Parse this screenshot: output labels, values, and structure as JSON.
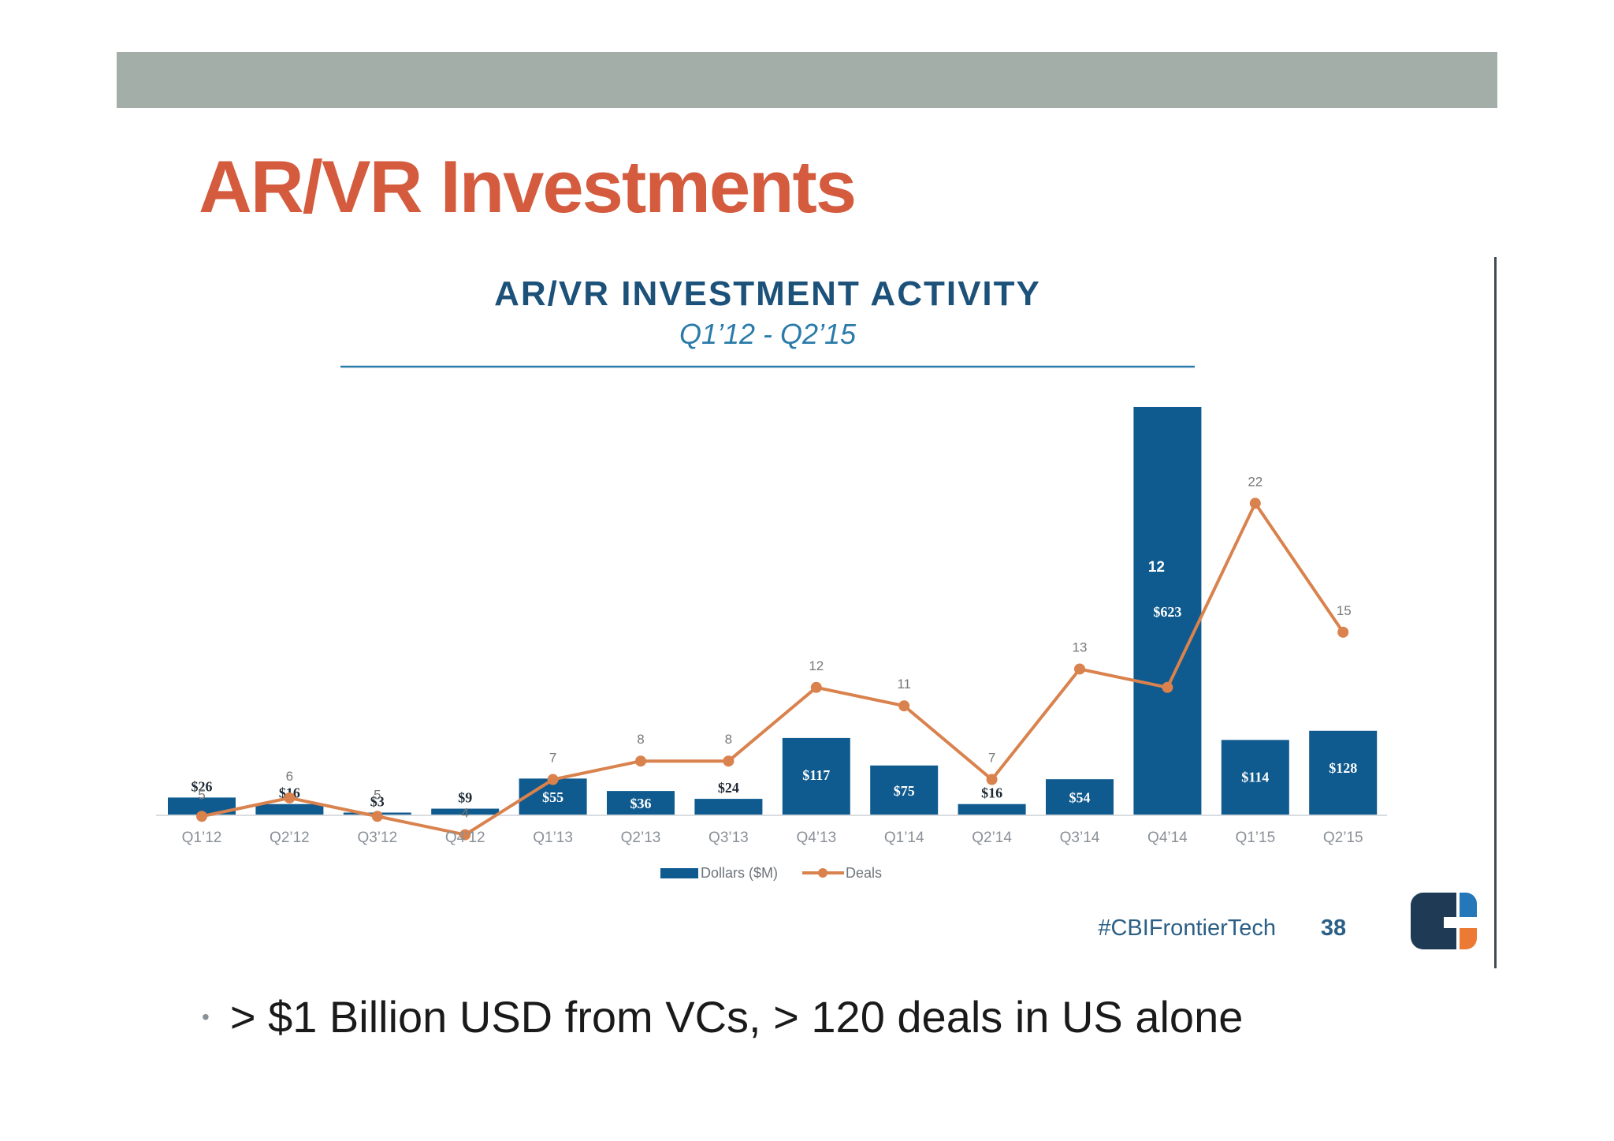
{
  "slide": {
    "title": "AR/VR Investments",
    "bullet": "> $1 Billion USD from VCs, > 120 deals in US alone"
  },
  "chart_data": {
    "type": "bar",
    "title": "AR/VR INVESTMENT ACTIVITY",
    "subtitle": "Q1’12 - Q2’15",
    "xlabel": "",
    "ylabel": "",
    "categories": [
      "Q1’12",
      "Q2’12",
      "Q3’12",
      "Q4’12",
      "Q1’13",
      "Q2’13",
      "Q3’13",
      "Q4’13",
      "Q1’14",
      "Q2’14",
      "Q3’14",
      "Q4’14",
      "Q1’15",
      "Q2’15"
    ],
    "series": [
      {
        "name": "Dollars ($M)",
        "type": "bar",
        "color": "#0f5a8e",
        "values": [
          26,
          16,
          3,
          9,
          55,
          36,
          24,
          117,
          75,
          16,
          54,
          623,
          114,
          128
        ],
        "labels": [
          "$26",
          "$16",
          "$3",
          "$9",
          "$55",
          "$36",
          "$24",
          "$117",
          "$75",
          "$16",
          "$54",
          "$623",
          "$114",
          "$128"
        ]
      },
      {
        "name": "Deals",
        "type": "line",
        "color": "#d9824d",
        "values": [
          5,
          6,
          5,
          4,
          7,
          8,
          8,
          12,
          11,
          7,
          13,
          12,
          22,
          15
        ]
      }
    ],
    "ylim_dollars": [
      0,
      623
    ],
    "ylim_deals": [
      0,
      22
    ],
    "grid": false,
    "legend_position": "bottom-center",
    "footer": {
      "hashtag": "#CBIFrontierTech",
      "page_number": "38"
    },
    "colors": {
      "title": "#1c5179",
      "rule": "#2a7ba9",
      "axis_labels": "#8a9097",
      "deal_labels": "#777777",
      "footer_hashtag": "#2b5f86",
      "logo_dark": "#1f3a55",
      "logo_blue": "#2477b8",
      "logo_orange": "#ec7a35"
    }
  }
}
